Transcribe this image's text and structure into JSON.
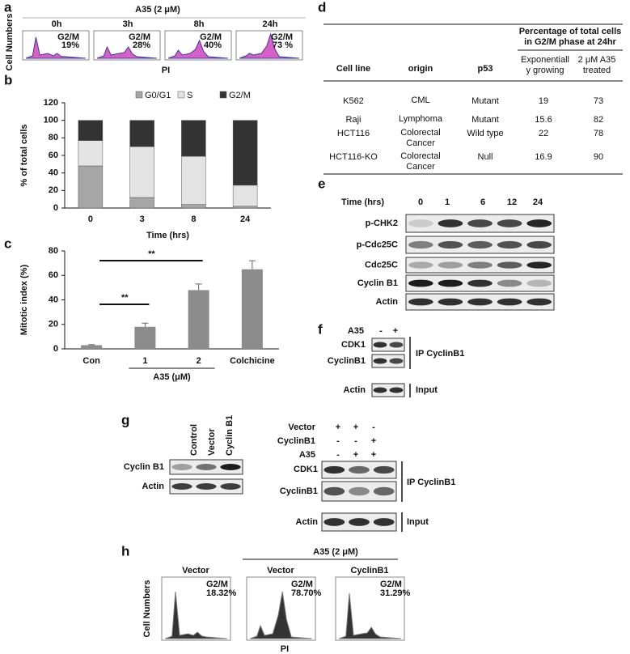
{
  "panel_labels": [
    "a",
    "b",
    "c",
    "d",
    "e",
    "f",
    "g",
    "h"
  ],
  "panel_a": {
    "title": "A35 (2 μM)",
    "y_label": "Cell Numbers",
    "x_label": "PI",
    "plots": [
      {
        "time": "0h",
        "phase": "G2/M",
        "percent": "19%"
      },
      {
        "time": "3h",
        "phase": "G2/M",
        "percent": "28%"
      },
      {
        "time": "8h",
        "phase": "G2/M",
        "percent": "40%"
      },
      {
        "time": "24h",
        "phase": "G2/M",
        "percent": "73 %"
      }
    ]
  },
  "chart_data": [
    {
      "type": "bar",
      "stacked": true,
      "categories": [
        "0",
        "3",
        "8",
        "24"
      ],
      "series": [
        {
          "name": "G0/G1",
          "color": "#a6a6a6",
          "values": [
            48,
            12,
            4,
            2
          ]
        },
        {
          "name": "S",
          "color": "#e3e3e3",
          "values": [
            29,
            58,
            55,
            24
          ]
        },
        {
          "name": "G2/M",
          "color": "#333333",
          "values": [
            23,
            30,
            41,
            74
          ]
        }
      ],
      "ylim": [
        0,
        120
      ],
      "yticks": [
        0,
        20,
        40,
        60,
        80,
        100,
        120
      ],
      "y_label": "% of total cells",
      "x_label": "Time (hrs)",
      "legend": "top"
    },
    {
      "type": "bar",
      "categories": [
        "Con",
        "1",
        "2",
        "Colchicine"
      ],
      "values": [
        3,
        18,
        48,
        65
      ],
      "errors": [
        0.5,
        3,
        5,
        7
      ],
      "color": "#8c8c8c",
      "ylim": [
        0,
        80
      ],
      "yticks": [
        0,
        20,
        40,
        60,
        80
      ],
      "y_label": "Mitotic index (%)",
      "group_label": "A35 (μM)",
      "annotations": [
        "**",
        "**"
      ]
    }
  ],
  "table": {
    "header": {
      "cell_line": "Cell line",
      "origin": "origin",
      "p53": "p53",
      "group": "Percentage of total cells in G2/M phase at 24hr",
      "exp": "Exponentiall y growing",
      "treated": "2 μM A35 treated"
    },
    "rows": [
      [
        "K562",
        "CML",
        "Mutant",
        "19",
        "73"
      ],
      [
        "Raji",
        "Lymphoma",
        "Mutant",
        "15.6",
        "82"
      ],
      [
        "HCT116",
        "Colorectal Cancer",
        "Wild type",
        "22",
        "78"
      ],
      [
        "HCT116-KO",
        "Colorectal Cancer",
        "Null",
        "16.9",
        "90"
      ]
    ]
  },
  "panel_e": {
    "time_label": "Time (hrs)",
    "times": [
      "0",
      "1",
      "6",
      "12",
      "24"
    ],
    "rows": [
      "p-CHK2",
      "p-Cdc25C",
      "Cdc25C",
      "Cyclin B1",
      "Actin"
    ]
  },
  "panel_f": {
    "treatment": "A35",
    "signs": [
      "-",
      "+"
    ],
    "rows": [
      "CDK1",
      "CyclinB1"
    ],
    "ip": "IP CyclinB1",
    "input_row": "Actin",
    "input": "Input"
  },
  "panel_g": {
    "lanes": [
      "Control",
      "Vector",
      "Cyclin B1"
    ],
    "rows": [
      "Cyclin B1",
      "Actin"
    ],
    "conditions": [
      {
        "name": "Vector",
        "signs": [
          "+",
          "+",
          "-"
        ]
      },
      {
        "name": "CyclinB1",
        "signs": [
          "-",
          "-",
          "+"
        ]
      },
      {
        "name": "A35",
        "signs": [
          "-",
          "+",
          "+"
        ]
      }
    ],
    "ip_rows": [
      "CDK1",
      "CyclinB1"
    ],
    "ip": "IP  CyclinB1",
    "input_row": "Actin",
    "input": "Input"
  },
  "panel_h": {
    "title": "A35 (2 μM)",
    "y_label": "Cell Numbers",
    "x_label": "PI",
    "plots": [
      {
        "name": "Vector",
        "phase": "G2/M",
        "percent": "18.32%"
      },
      {
        "name": "Vector",
        "phase": "G2/M",
        "percent": "78.70%"
      },
      {
        "name": "CyclinB1",
        "phase": "G2/M",
        "percent": "31.29%"
      }
    ]
  }
}
